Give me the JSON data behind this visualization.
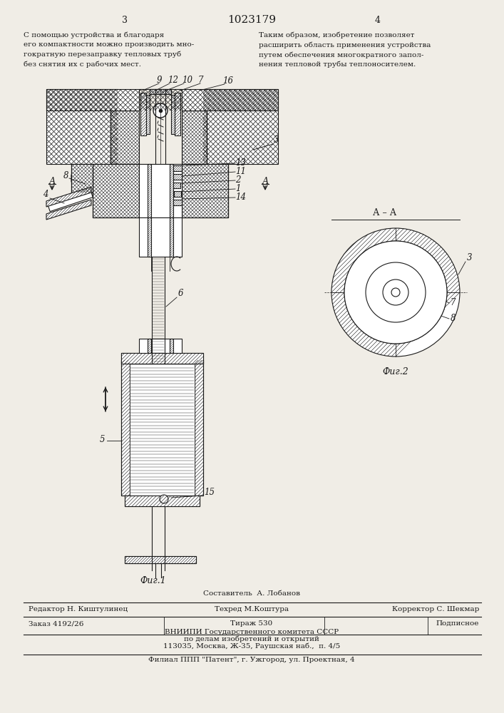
{
  "bg_color": "#f0ede6",
  "title_num": "1023179",
  "page_left": "3",
  "page_right": "4",
  "text_left": "С помощью устройства и благодаря\nего компактности можно производить мно-\nгократную перезаправку тепловых труб\nбез снятия их с рабочих мест.",
  "text_right": "Таким образом, изобретение позволяет\nрасширить область применения устройства\nпутем обеспечения многократного запол-\nнения тепловой трубы теплоносителем.",
  "fig1_label": "Фиг.1",
  "fig2_label": "Фиг.2",
  "section_label": "А – А",
  "footer_line1": "Составитель  А. Лобанов",
  "footer_line2_left": "Редактор Н. Киштулинец",
  "footer_line2_mid": "Техред М.Коштура",
  "footer_line2_right": "Корректор С. Шекмар",
  "footer_order": "Заказ 4192/26",
  "footer_tirazh": "Тираж 530",
  "footer_podp": "Подписное",
  "footer_vniip1": "ВНИИПИ Государственного комитета СССР",
  "footer_vniip2": "по делам изобретений и открытий",
  "footer_vniip3": "113035, Москва, Ж-35, Раушская наб.,  п. 4/5",
  "footer_filial": "Филиал ППП \"Патент\", г. Ужгород, ул. Проектная, 4",
  "line_color": "#1a1a1a"
}
